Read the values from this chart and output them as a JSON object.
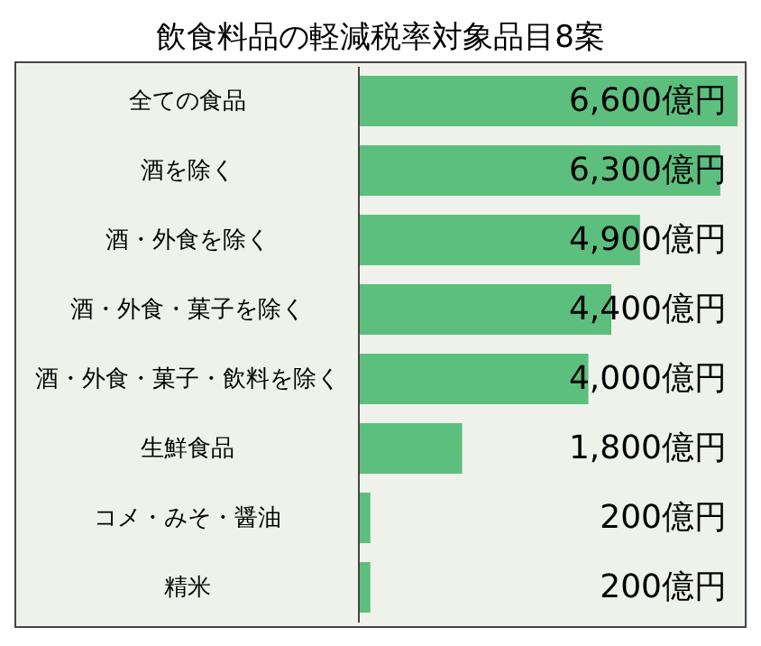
{
  "chart_data": {
    "type": "bar",
    "orientation": "horizontal",
    "title": "飲食料品の軽減税率対象品目8案",
    "categories": [
      "全ての食品",
      "酒を除く",
      "酒・外食を除く",
      "酒・外食・菓子を除く",
      "酒・外食・菓子・飲料を除く",
      "生鮮食品",
      "コメ・みそ・醤油",
      "精米"
    ],
    "values": [
      6600,
      6300,
      4900,
      4400,
      4000,
      1800,
      200,
      200
    ],
    "value_labels": [
      "6,600億円",
      "6,300億円",
      "4,900億円",
      "4,400億円",
      "4,000億円",
      "1,800億円",
      "200億円",
      "200億円"
    ],
    "color": "#5cbf7e"
  }
}
